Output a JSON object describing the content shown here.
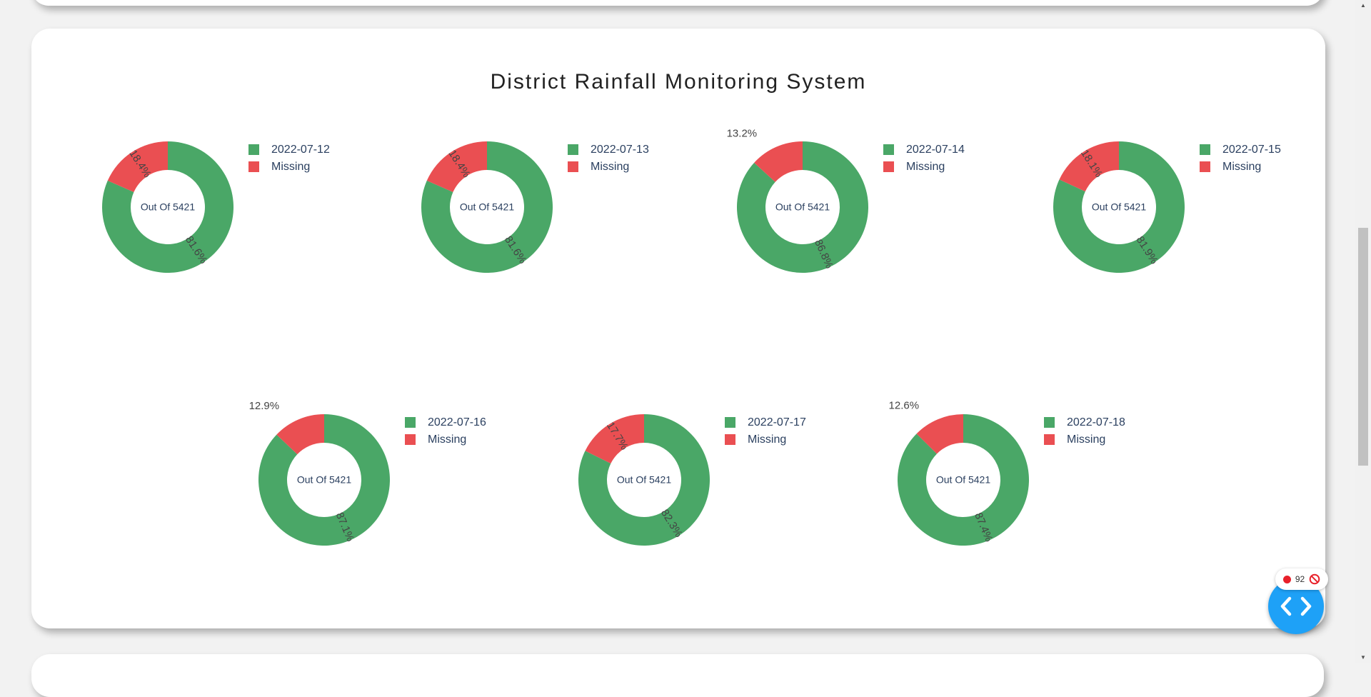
{
  "page": {
    "title": "District Rainfall Monitoring System"
  },
  "colors": {
    "reported": "#4aa767",
    "missing": "#ea4f52"
  },
  "chart_data": [
    {
      "type": "pie",
      "hole": true,
      "center_text": "Out Of 5421",
      "labels": [
        "2022-07-12",
        "Missing"
      ],
      "values": [
        81.6,
        18.4
      ],
      "percent_labels": [
        "81.6%",
        "18.4%"
      ]
    },
    {
      "type": "pie",
      "hole": true,
      "center_text": "Out Of 5421",
      "labels": [
        "2022-07-13",
        "Missing"
      ],
      "values": [
        81.6,
        18.4
      ],
      "percent_labels": [
        "81.6%",
        "18.4%"
      ]
    },
    {
      "type": "pie",
      "hole": true,
      "center_text": "Out Of 5421",
      "labels": [
        "2022-07-14",
        "Missing"
      ],
      "values": [
        86.8,
        13.2
      ],
      "percent_labels": [
        "86.8%",
        "13.2%"
      ]
    },
    {
      "type": "pie",
      "hole": true,
      "center_text": "Out Of 5421",
      "labels": [
        "2022-07-15",
        "Missing"
      ],
      "values": [
        81.9,
        18.1
      ],
      "percent_labels": [
        "81.9%",
        "18.1%"
      ]
    },
    {
      "type": "pie",
      "hole": true,
      "center_text": "Out Of 5421",
      "labels": [
        "2022-07-16",
        "Missing"
      ],
      "values": [
        87.1,
        12.9
      ],
      "percent_labels": [
        "87.1%",
        "12.9%"
      ]
    },
    {
      "type": "pie",
      "hole": true,
      "center_text": "Out Of 5421",
      "labels": [
        "2022-07-17",
        "Missing"
      ],
      "values": [
        82.3,
        17.7
      ],
      "percent_labels": [
        "82.3%",
        "17.7%"
      ]
    },
    {
      "type": "pie",
      "hole": true,
      "center_text": "Out Of 5421",
      "labels": [
        "2022-07-18",
        "Missing"
      ],
      "values": [
        87.4,
        12.6
      ],
      "percent_labels": [
        "87.4%",
        "12.6%"
      ]
    }
  ],
  "widgets": {
    "error_count": "92"
  }
}
